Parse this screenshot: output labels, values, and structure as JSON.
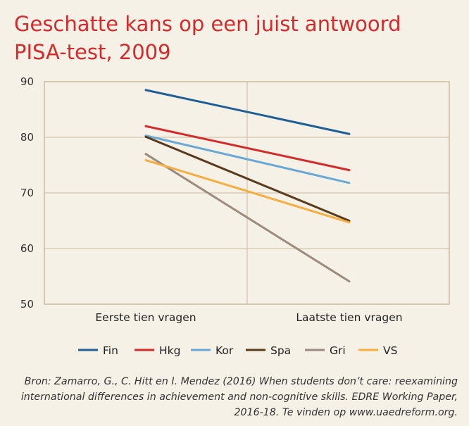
{
  "chart_data": {
    "type": "line",
    "title": "Geschatte kans op een juist antwoord PISA-test, 2009",
    "categories": [
      "Eerste tien vragen",
      "Laatste tien vragen"
    ],
    "ylim": [
      50,
      90
    ],
    "yticks": [
      50,
      60,
      70,
      80,
      90
    ],
    "grid": true,
    "legend_position": "bottom",
    "series": [
      {
        "name": "Fin",
        "color": "#1f5f95",
        "values": [
          88.5,
          80.6
        ]
      },
      {
        "name": "Hkg",
        "color": "#d52a2a",
        "values": [
          82.0,
          74.1
        ]
      },
      {
        "name": "Kor",
        "color": "#6aa8d4",
        "values": [
          80.3,
          71.8
        ]
      },
      {
        "name": "Spa",
        "color": "#5a3a1a",
        "values": [
          80.1,
          65.0
        ]
      },
      {
        "name": "Gri",
        "color": "#9b8a7e",
        "values": [
          77.0,
          54.1
        ]
      },
      {
        "name": "VS",
        "color": "#f7ad3f",
        "values": [
          75.9,
          64.7
        ]
      }
    ]
  },
  "source": "Bron: Zamarro, G., C. Hitt en I. Mendez (2016) When students don’t care: reexamining international differences in achievement and non-cognitive skills. EDRE Working Paper, 2016-18. Te vinden op www.uaedreform.org."
}
